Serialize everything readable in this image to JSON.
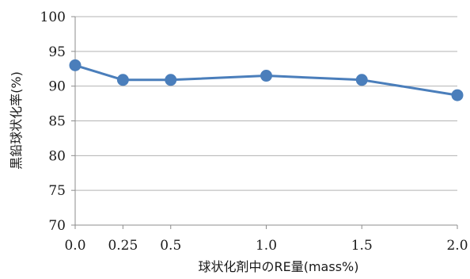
{
  "chart_data": {
    "type": "line",
    "title": "",
    "xlabel": "球状化剤中のRE量(mass%)",
    "ylabel": "黒鉛球状化率(%)",
    "x_ticks": [
      "0.0",
      "0.25",
      "0.5",
      "1.0",
      "1.5",
      "2.0"
    ],
    "y_ticks": [
      "100",
      "95",
      "90",
      "85",
      "80",
      "75",
      "70"
    ],
    "xlim": [
      0,
      2
    ],
    "ylim": [
      70,
      100
    ],
    "grid": true,
    "legend": "none",
    "series": [
      {
        "x": [
          0.0,
          0.25,
          0.5,
          1.0,
          1.5,
          2.0
        ],
        "y": [
          93.0,
          90.9,
          90.9,
          91.5,
          90.9,
          88.7
        ],
        "color": "#4a7ebb"
      }
    ]
  }
}
